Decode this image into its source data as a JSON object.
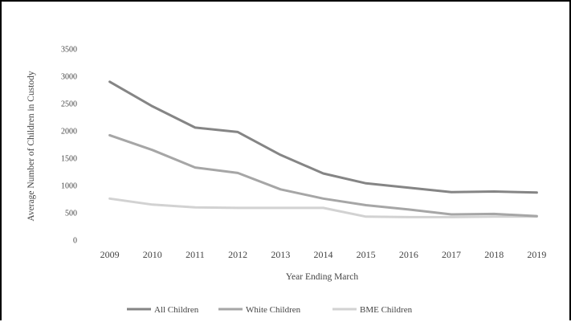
{
  "chart_data": {
    "type": "line",
    "title": "",
    "xlabel": "Year Ending March",
    "ylabel": "Average Number of Children in Custody",
    "ylim": [
      0,
      3500
    ],
    "yticks": [
      "0",
      "500",
      "1000",
      "1500",
      "2000",
      "2500",
      "3000",
      "3500"
    ],
    "ytick_values": [
      0,
      500,
      1000,
      1500,
      2000,
      2500,
      3000,
      3500
    ],
    "categories": [
      "2009",
      "2010",
      "2011",
      "2012",
      "2013",
      "2014",
      "2015",
      "2016",
      "2017",
      "2018",
      "2019"
    ],
    "grid": false,
    "legend_position": "bottom",
    "series": [
      {
        "name": "All Children",
        "color": "#858585",
        "values": [
          2900,
          2450,
          2060,
          1980,
          1560,
          1220,
          1040,
          960,
          880,
          890,
          870
        ]
      },
      {
        "name": "White Children",
        "color": "#a6a6a6",
        "values": [
          1920,
          1650,
          1330,
          1230,
          930,
          760,
          640,
          560,
          470,
          480,
          440
        ]
      },
      {
        "name": "BME Children",
        "color": "#d2d2d2",
        "values": [
          760,
          650,
          600,
          590,
          590,
          590,
          430,
          420,
          420,
          430,
          430
        ]
      }
    ]
  }
}
